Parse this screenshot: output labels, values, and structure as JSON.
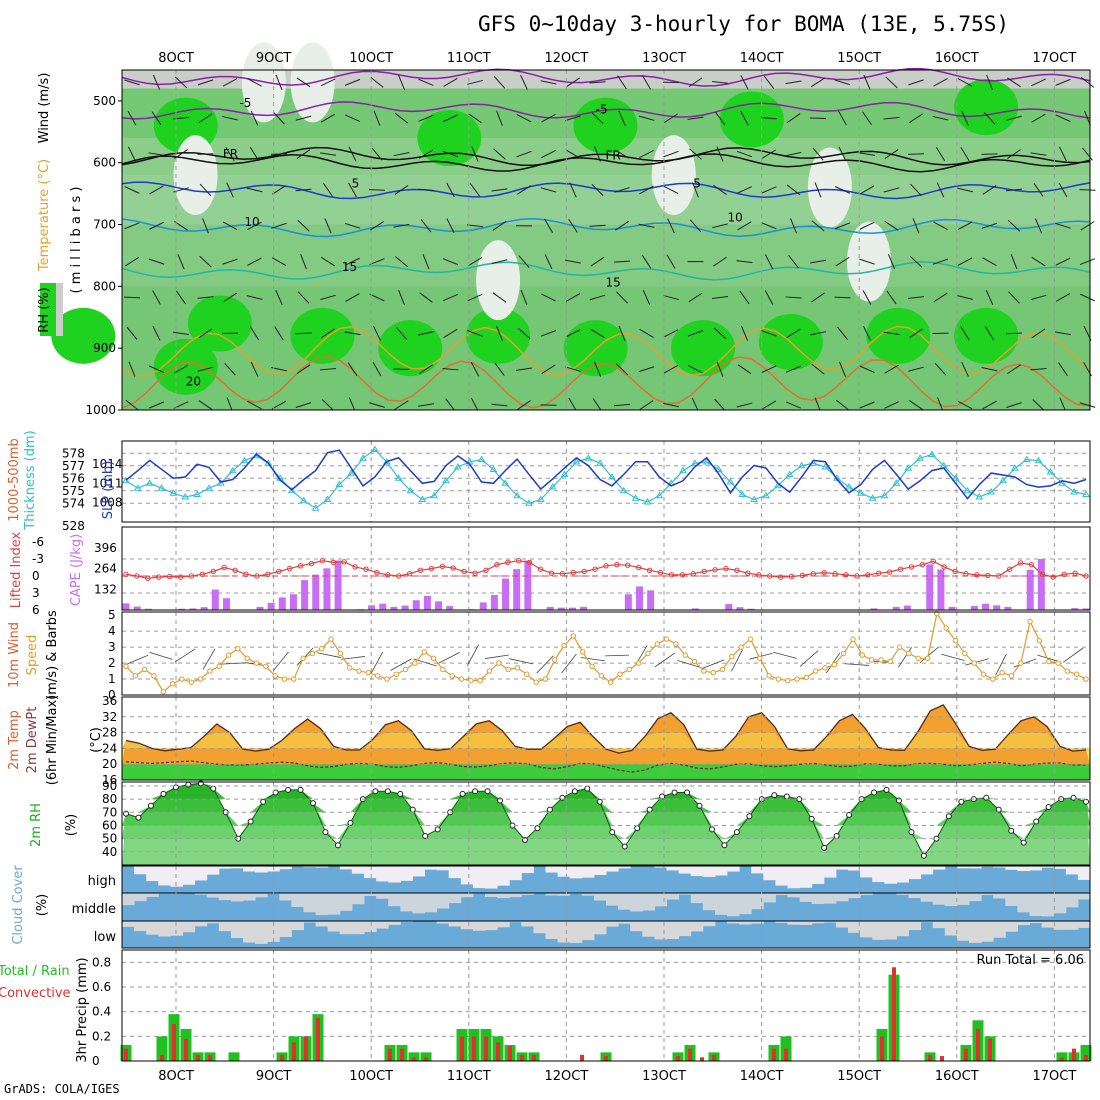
{
  "title": "GFS 0~10day 3-hourly for BOMA (13E, 5.75S)",
  "credit": "GrADS: COLA/IGES",
  "colors": {
    "green": "#1fd21f",
    "gray": "#cdcdcd",
    "cape": "#c86ef5",
    "rain": "#e03030",
    "cloud": "#6aaad8",
    "thick": "#30c0d0",
    "slp": "#1a3ccc",
    "lifted": "#e04040",
    "wind": "#e69a2a",
    "rh_dark": "#19b219"
  },
  "x_axis": {
    "dates": [
      "8OCT",
      "9OCT",
      "10OCT",
      "11OCT",
      "12OCT",
      "13OCT",
      "14OCT",
      "15OCT",
      "16OCT",
      "17OCT"
    ]
  },
  "chart_data": [
    {
      "type": "heatmap",
      "name": "upper-air cross section",
      "ylabel_parts": [
        "RH (%)",
        "Temperature (°C)",
        "Wind (m/s)"
      ],
      "yaxis_label": "( m i l l i b a r s )",
      "ylim": [
        1000,
        450
      ],
      "yticks": [
        "500",
        "600",
        "700",
        "800",
        "900",
        "1000"
      ],
      "contour_labels": [
        {
          "text": "-5",
          "level": 510,
          "day": 1.65
        },
        {
          "text": "-5",
          "level": 520,
          "day": 5.3
        },
        {
          "text": "FR",
          "level": 592,
          "day": 1.48
        },
        {
          "text": "FR",
          "level": 595,
          "day": 5.4
        },
        {
          "text": "5",
          "level": 640,
          "day": 2.8
        },
        {
          "text": "5",
          "level": 640,
          "day": 6.3
        },
        {
          "text": "10",
          "level": 702,
          "day": 1.7
        },
        {
          "text": "10",
          "level": 695,
          "day": 6.65
        },
        {
          "text": "15",
          "level": 775,
          "day": 2.7
        },
        {
          "text": "15",
          "level": 800,
          "day": 5.4
        },
        {
          "text": "20",
          "level": 960,
          "day": 1.1
        }
      ]
    },
    {
      "type": "line",
      "name": "thickness and sea level pressure",
      "ylabel_left": "1000-500mb Thickness (dm)",
      "ylabel_right": "SLP (mb)",
      "yticks_left": [
        "578",
        "577",
        "576",
        "575",
        "574"
      ],
      "yticks_right": [
        "1014",
        "1011",
        "1008"
      ],
      "bottom_tick": "528",
      "series": [
        {
          "name": "Thickness",
          "values": [
            575.8,
            575.2,
            575.6,
            575.2,
            574.8,
            574.5,
            574.7,
            575.2,
            575.6,
            576.6,
            577.4,
            577.8,
            577.2,
            576.0,
            575.0,
            574.2,
            573.6,
            574.3,
            575.5,
            576.4,
            577.6,
            578.3,
            577.3,
            576.0,
            575.0,
            574.3,
            574.6,
            575.8,
            576.9,
            577.3,
            577.5,
            576.7,
            575.6,
            574.6,
            574.0,
            574.3,
            575.3,
            576.3,
            577.3,
            577.6,
            577.2,
            576.1,
            575.0,
            574.4,
            574.1,
            574.6,
            575.6,
            576.6,
            577.2,
            577.3,
            576.7,
            575.7,
            574.7,
            574.3,
            574.6,
            575.4,
            576.3,
            577.0,
            577.2,
            576.9,
            576.0,
            575.3,
            574.8,
            574.4,
            574.6,
            575.6,
            576.8,
            577.6,
            577.9,
            577.0,
            576.0,
            575.0,
            574.5,
            574.9,
            575.8,
            576.8,
            577.5,
            577.4,
            576.5,
            575.6,
            574.9,
            574.7
          ]
        },
        {
          "name": "SLP",
          "values": [
            1011.5,
            1013.0,
            1014.6,
            1013.2,
            1011.8,
            1012.0,
            1014.0,
            1013.5,
            1011.2,
            1011.6,
            1013.4,
            1015.6,
            1014.2,
            1011.5,
            1010.0,
            1011.6,
            1013.0,
            1015.8,
            1016.2,
            1013.4,
            1010.6,
            1012.0,
            1014.4,
            1015.0,
            1013.0,
            1011.0,
            1011.3,
            1013.8,
            1015.3,
            1014.0,
            1011.2,
            1011.0,
            1013.0,
            1014.8,
            1012.4,
            1010.1,
            1011.7,
            1013.4,
            1015.0,
            1013.8,
            1011.6,
            1010.6,
            1012.4,
            1014.4,
            1014.4,
            1012.0,
            1010.6,
            1011.4,
            1013.6,
            1015.0,
            1012.5,
            1009.5,
            1012.0,
            1013.8,
            1013.4,
            1011.0,
            1009.6,
            1012.0,
            1014.6,
            1014.4,
            1011.6,
            1009.5,
            1010.8,
            1013.2,
            1014.6,
            1012.4,
            1010.1,
            1011.4,
            1013.0,
            1013.4,
            1011.0,
            1008.6,
            1010.8,
            1012.6,
            1012.3,
            1012.0,
            1010.8,
            1010.4,
            1010.6,
            1011.4,
            1011.0,
            1011.6
          ]
        }
      ]
    },
    {
      "type": "bar",
      "name": "lifted index and CAPE",
      "ylabel_left": "Lifted Index",
      "ylabel_right": "CAPE (J/kg)",
      "yticks_left": [
        "-6",
        "-3",
        "0",
        "3",
        "6"
      ],
      "yticks_right": [
        "396",
        "264",
        "132"
      ],
      "series": [
        {
          "name": "CAPE",
          "values": [
            42,
            22,
            8,
            0,
            0,
            8,
            10,
            18,
            130,
            75,
            0,
            0,
            20,
            45,
            80,
            100,
            190,
            225,
            265,
            315,
            0,
            5,
            30,
            40,
            20,
            28,
            62,
            90,
            55,
            25,
            0,
            5,
            48,
            95,
            200,
            260,
            315,
            0,
            20,
            15,
            15,
            20,
            0,
            0,
            0,
            100,
            150,
            125,
            0,
            0,
            0,
            10,
            0,
            0,
            38,
            18,
            8,
            0,
            0,
            0,
            0,
            0,
            0,
            0,
            0,
            0,
            0,
            10,
            0,
            20,
            28,
            0,
            290,
            258,
            20,
            0,
            25,
            40,
            30,
            20,
            0,
            255,
            325,
            0,
            0,
            12,
            10
          ]
        },
        {
          "name": "Lifted Index",
          "values": [
            -0.3,
            0.0,
            0.4,
            0.2,
            0.1,
            0.2,
            0.0,
            -0.3,
            -0.8,
            -1.5,
            -1.0,
            -0.3,
            0.0,
            -0.3,
            -0.8,
            -1.3,
            -1.8,
            -2.2,
            -2.7,
            -2.4,
            -2.5,
            -1.6,
            -1.2,
            -0.6,
            -0.2,
            0.0,
            -0.4,
            -1.0,
            -1.3,
            -1.7,
            -1.4,
            -0.8,
            -0.5,
            -1.0,
            -2.0,
            -2.4,
            -2.7,
            -2.4,
            -1.2,
            -0.5,
            -0.4,
            -0.6,
            -0.8,
            -1.2,
            -1.8,
            -2.0,
            -1.9,
            -1.5,
            -1.0,
            -0.6,
            -0.2,
            -0.2,
            -0.4,
            -0.8,
            -1.1,
            -1.3,
            -1.0,
            -0.5,
            -0.2,
            0.0,
            0.2,
            0.1,
            -0.1,
            -0.4,
            -0.6,
            -0.4,
            -0.2,
            0.0,
            -0.2,
            -0.5,
            -0.7,
            -1.2,
            -1.6,
            -2.0,
            -2.6,
            -1.6,
            -0.8,
            -0.4,
            -0.2,
            -0.1,
            0.0,
            -1.2,
            -2.3,
            -2.0,
            -0.3,
            0.2,
            -0.3,
            -0.5,
            0.0
          ]
        }
      ]
    },
    {
      "type": "line",
      "name": "10m wind",
      "ylabel": "10m Wind Speed (m/s) & Barbs",
      "yticks": [
        "5",
        "4",
        "3",
        "2",
        "1",
        "0"
      ],
      "ylim": [
        0,
        5
      ],
      "series": [
        {
          "name": "Wind speed",
          "values": [
            1.8,
            1.2,
            1.6,
            1.2,
            0.2,
            0.7,
            1.0,
            0.8,
            1.0,
            1.5,
            1.8,
            2.5,
            2.9,
            2.3,
            2.0,
            1.8,
            1.2,
            1.0,
            1.0,
            2.3,
            2.6,
            2.9,
            3.5,
            2.6,
            1.7,
            1.5,
            1.4,
            1.2,
            1.0,
            1.3,
            1.6,
            2.0,
            2.7,
            2.3,
            1.6,
            1.2,
            1.0,
            0.9,
            0.9,
            1.5,
            2.0,
            1.6,
            1.7,
            1.3,
            0.8,
            1.0,
            2.2,
            3.1,
            3.7,
            2.7,
            1.8,
            1.2,
            0.8,
            1.3,
            1.6,
            2.0,
            2.6,
            3.2,
            3.5,
            3.2,
            2.5,
            2.1,
            1.5,
            1.4,
            1.6,
            2.4,
            3.0,
            3.5,
            2.3,
            1.2,
            1.0,
            0.9,
            1.0,
            1.1,
            1.5,
            1.7,
            1.9,
            2.6,
            3.5,
            2.5,
            2.2,
            2.2,
            2.1,
            3.0,
            2.6,
            2.3,
            2.3,
            5.1,
            4.2,
            3.4,
            2.6,
            2.0,
            1.3,
            1.0,
            1.4,
            1.2,
            2.0,
            4.6,
            3.4,
            2.1,
            2.0,
            1.5,
            1.3,
            1.0
          ]
        }
      ]
    },
    {
      "type": "area",
      "name": "2m temperature",
      "ylabel": "2m Temp 2m DewPt (6hr Min/Max) (°C)",
      "yticks": [
        "36",
        "32",
        "28",
        "24",
        "20",
        "16"
      ],
      "ylim": [
        16,
        37
      ],
      "series": [
        {
          "name": "2m Temp",
          "values": [
            26.0,
            25.3,
            24.0,
            23.4,
            23.8,
            24.2,
            27.0,
            30.2,
            28.0,
            23.8,
            23.3,
            23.8,
            26.0,
            29.0,
            31.4,
            29.0,
            24.5,
            23.6,
            23.6,
            26.2,
            30.0,
            31.0,
            28.5,
            23.9,
            23.5,
            23.9,
            27.0,
            30.2,
            31.0,
            28.5,
            24.5,
            23.8,
            23.8,
            26.5,
            29.5,
            30.6,
            27.0,
            23.8,
            22.8,
            23.5,
            27.0,
            31.5,
            33.0,
            30.0,
            23.8,
            23.3,
            23.6,
            27.0,
            32.0,
            33.0,
            29.5,
            23.9,
            23.4,
            23.6,
            27.0,
            31.0,
            32.6,
            29.0,
            24.2,
            23.6,
            23.5,
            28.0,
            33.5,
            35.0,
            30.0,
            24.5,
            23.5,
            23.8,
            27.5,
            31.0,
            32.0,
            29.5,
            24.5,
            23.3,
            23.6
          ]
        },
        {
          "name": "2m DewPt",
          "values": [
            20.6,
            20.4,
            20.2,
            20.4,
            20.6,
            20.8,
            20.4,
            20.0,
            19.8,
            19.8,
            20.0,
            20.3,
            20.5,
            20.3,
            19.6,
            19.2,
            19.4,
            20.0,
            20.2,
            20.0,
            19.4,
            19.2,
            19.6,
            20.2,
            20.4,
            20.0,
            19.4,
            19.3,
            19.6,
            20.2,
            20.3,
            20.1,
            19.2,
            18.8,
            19.4,
            20.2,
            20.1,
            19.3,
            18.5,
            18.0,
            18.5,
            19.8,
            20.2,
            19.8,
            19.0,
            18.8,
            19.3,
            20.0,
            20.1,
            19.6,
            19.4,
            19.6,
            20.0,
            20.2,
            19.8,
            19.4,
            19.5,
            20.1,
            20.0,
            19.6,
            19.6,
            20.2,
            20.2,
            20.0,
            19.6,
            19.8,
            20.2,
            20.5,
            20.2,
            19.6,
            20.0,
            20.3,
            20.3,
            19.8,
            19.8
          ]
        }
      ]
    },
    {
      "type": "area",
      "name": "2m relative humidity",
      "ylabel": "2m RH (%)",
      "yticks": [
        "90",
        "80",
        "70",
        "60",
        "50",
        "40"
      ],
      "ylim": [
        30,
        93
      ],
      "series": [
        {
          "name": "2m RH",
          "values": [
            69,
            66,
            75,
            84,
            89,
            91,
            92,
            88,
            70,
            50,
            63,
            78,
            85,
            87,
            87,
            77,
            55,
            45,
            62,
            80,
            86,
            86,
            84,
            72,
            52,
            57,
            70,
            84,
            86,
            86,
            79,
            60,
            49,
            58,
            72,
            81,
            86,
            88,
            78,
            55,
            44,
            58,
            72,
            82,
            85,
            85,
            75,
            57,
            45,
            55,
            67,
            80,
            83,
            82,
            80,
            65,
            43,
            52,
            68,
            80,
            85,
            87,
            79,
            55,
            37,
            50,
            67,
            78,
            80,
            81,
            72,
            56,
            47,
            63,
            74,
            80,
            81,
            78
          ]
        }
      ]
    },
    {
      "type": "area",
      "name": "cloud cover",
      "ylabel": "Cloud Cover (%)",
      "yticks": [
        "high",
        "middle",
        "low"
      ]
    },
    {
      "type": "bar",
      "name": "3hr precipitation",
      "ylabel_left": "Total / Rain",
      "ylabel_left2": "Convective",
      "ylabel_right": "3hr Precip (mm)",
      "ylim": [
        0,
        0.9
      ],
      "yticks": [
        "0.8",
        "0.6",
        "0.4",
        "0.2",
        "0"
      ],
      "run_total": "Run Total = 6.06",
      "series": [
        {
          "name": "Total",
          "values": [
            0.13,
            0,
            0,
            0.2,
            0.38,
            0.26,
            0.07,
            0.07,
            0,
            0.07,
            0,
            0,
            0,
            0.07,
            0.2,
            0.2,
            0.38,
            0,
            0,
            0,
            0,
            0,
            0.13,
            0.13,
            0.07,
            0.07,
            0,
            0,
            0.26,
            0.26,
            0.26,
            0.2,
            0.13,
            0.07,
            0.07,
            0,
            0,
            0,
            0,
            0,
            0.07,
            0,
            0,
            0,
            0,
            0,
            0.07,
            0.13,
            0,
            0.07,
            0,
            0,
            0,
            0,
            0.13,
            0.2,
            0,
            0,
            0,
            0,
            0,
            0,
            0,
            0.26,
            0.7,
            0,
            0,
            0.07,
            0,
            0,
            0.13,
            0.33,
            0.2,
            0,
            0,
            0,
            0,
            0,
            0.07,
            0.07,
            0.13
          ]
        },
        {
          "name": "Convective",
          "values": [
            0.1,
            0,
            0,
            0.05,
            0.3,
            0.18,
            0.05,
            0.05,
            0,
            0,
            0,
            0,
            0,
            0.05,
            0.15,
            0.2,
            0.35,
            0,
            0,
            0,
            0,
            0,
            0.1,
            0.1,
            0.03,
            0.03,
            0,
            0,
            0.2,
            0.2,
            0.2,
            0.15,
            0.12,
            0.05,
            0.05,
            0,
            0,
            0,
            0.05,
            0,
            0.04,
            0,
            0,
            0,
            0,
            0,
            0.04,
            0.1,
            0.03,
            0.05,
            0,
            0,
            0,
            0,
            0.1,
            0.1,
            0,
            0,
            0,
            0,
            0,
            0,
            0,
            0.2,
            0.76,
            0,
            0,
            0.05,
            0.04,
            0,
            0.1,
            0.26,
            0.18,
            0,
            0,
            0,
            0,
            0,
            0.03,
            0.1,
            0.05
          ]
        }
      ]
    }
  ]
}
